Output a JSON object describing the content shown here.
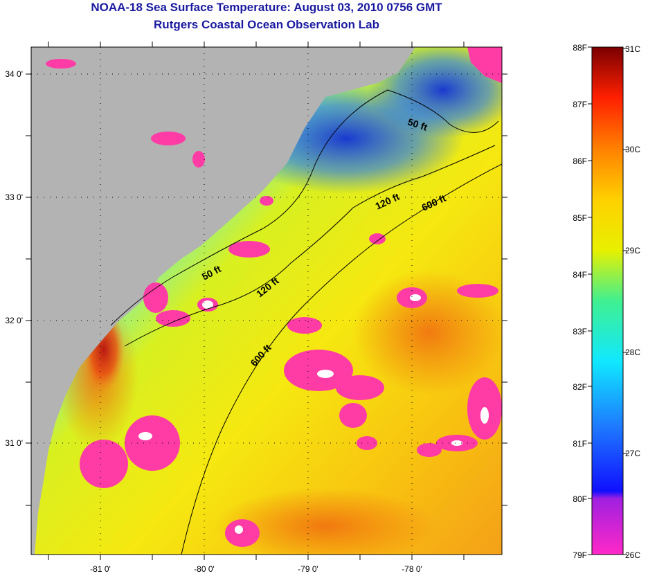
{
  "title_line1": "NOAA-18 Sea Surface Temperature:  August 03, 2010 0756 GMT",
  "title_line2": "Rutgers Coastal Ocean Observation Lab",
  "lat_labels": [
    "34 0'",
    "33 0'",
    "32 0'",
    "31 0'"
  ],
  "lon_labels": [
    "-81 0'",
    "-80 0'",
    "-79 0'",
    "-78 0'"
  ],
  "contour_labels": [
    "50 ft",
    "120 ft",
    "600 ft",
    "50 ft",
    "120 ft",
    "600 ft"
  ],
  "colorbar": {
    "fahrenheit": [
      "88F",
      "87F",
      "86F",
      "85F",
      "84F",
      "83F",
      "82F",
      "81F",
      "80F",
      "79F"
    ],
    "celsius": [
      "31C",
      "30C",
      "29C",
      "28C",
      "27C",
      "26C"
    ]
  },
  "colors": {
    "land": "#b3b3b3",
    "cloud_mask": "#ff3ca6",
    "title": "#1a1aa0"
  }
}
